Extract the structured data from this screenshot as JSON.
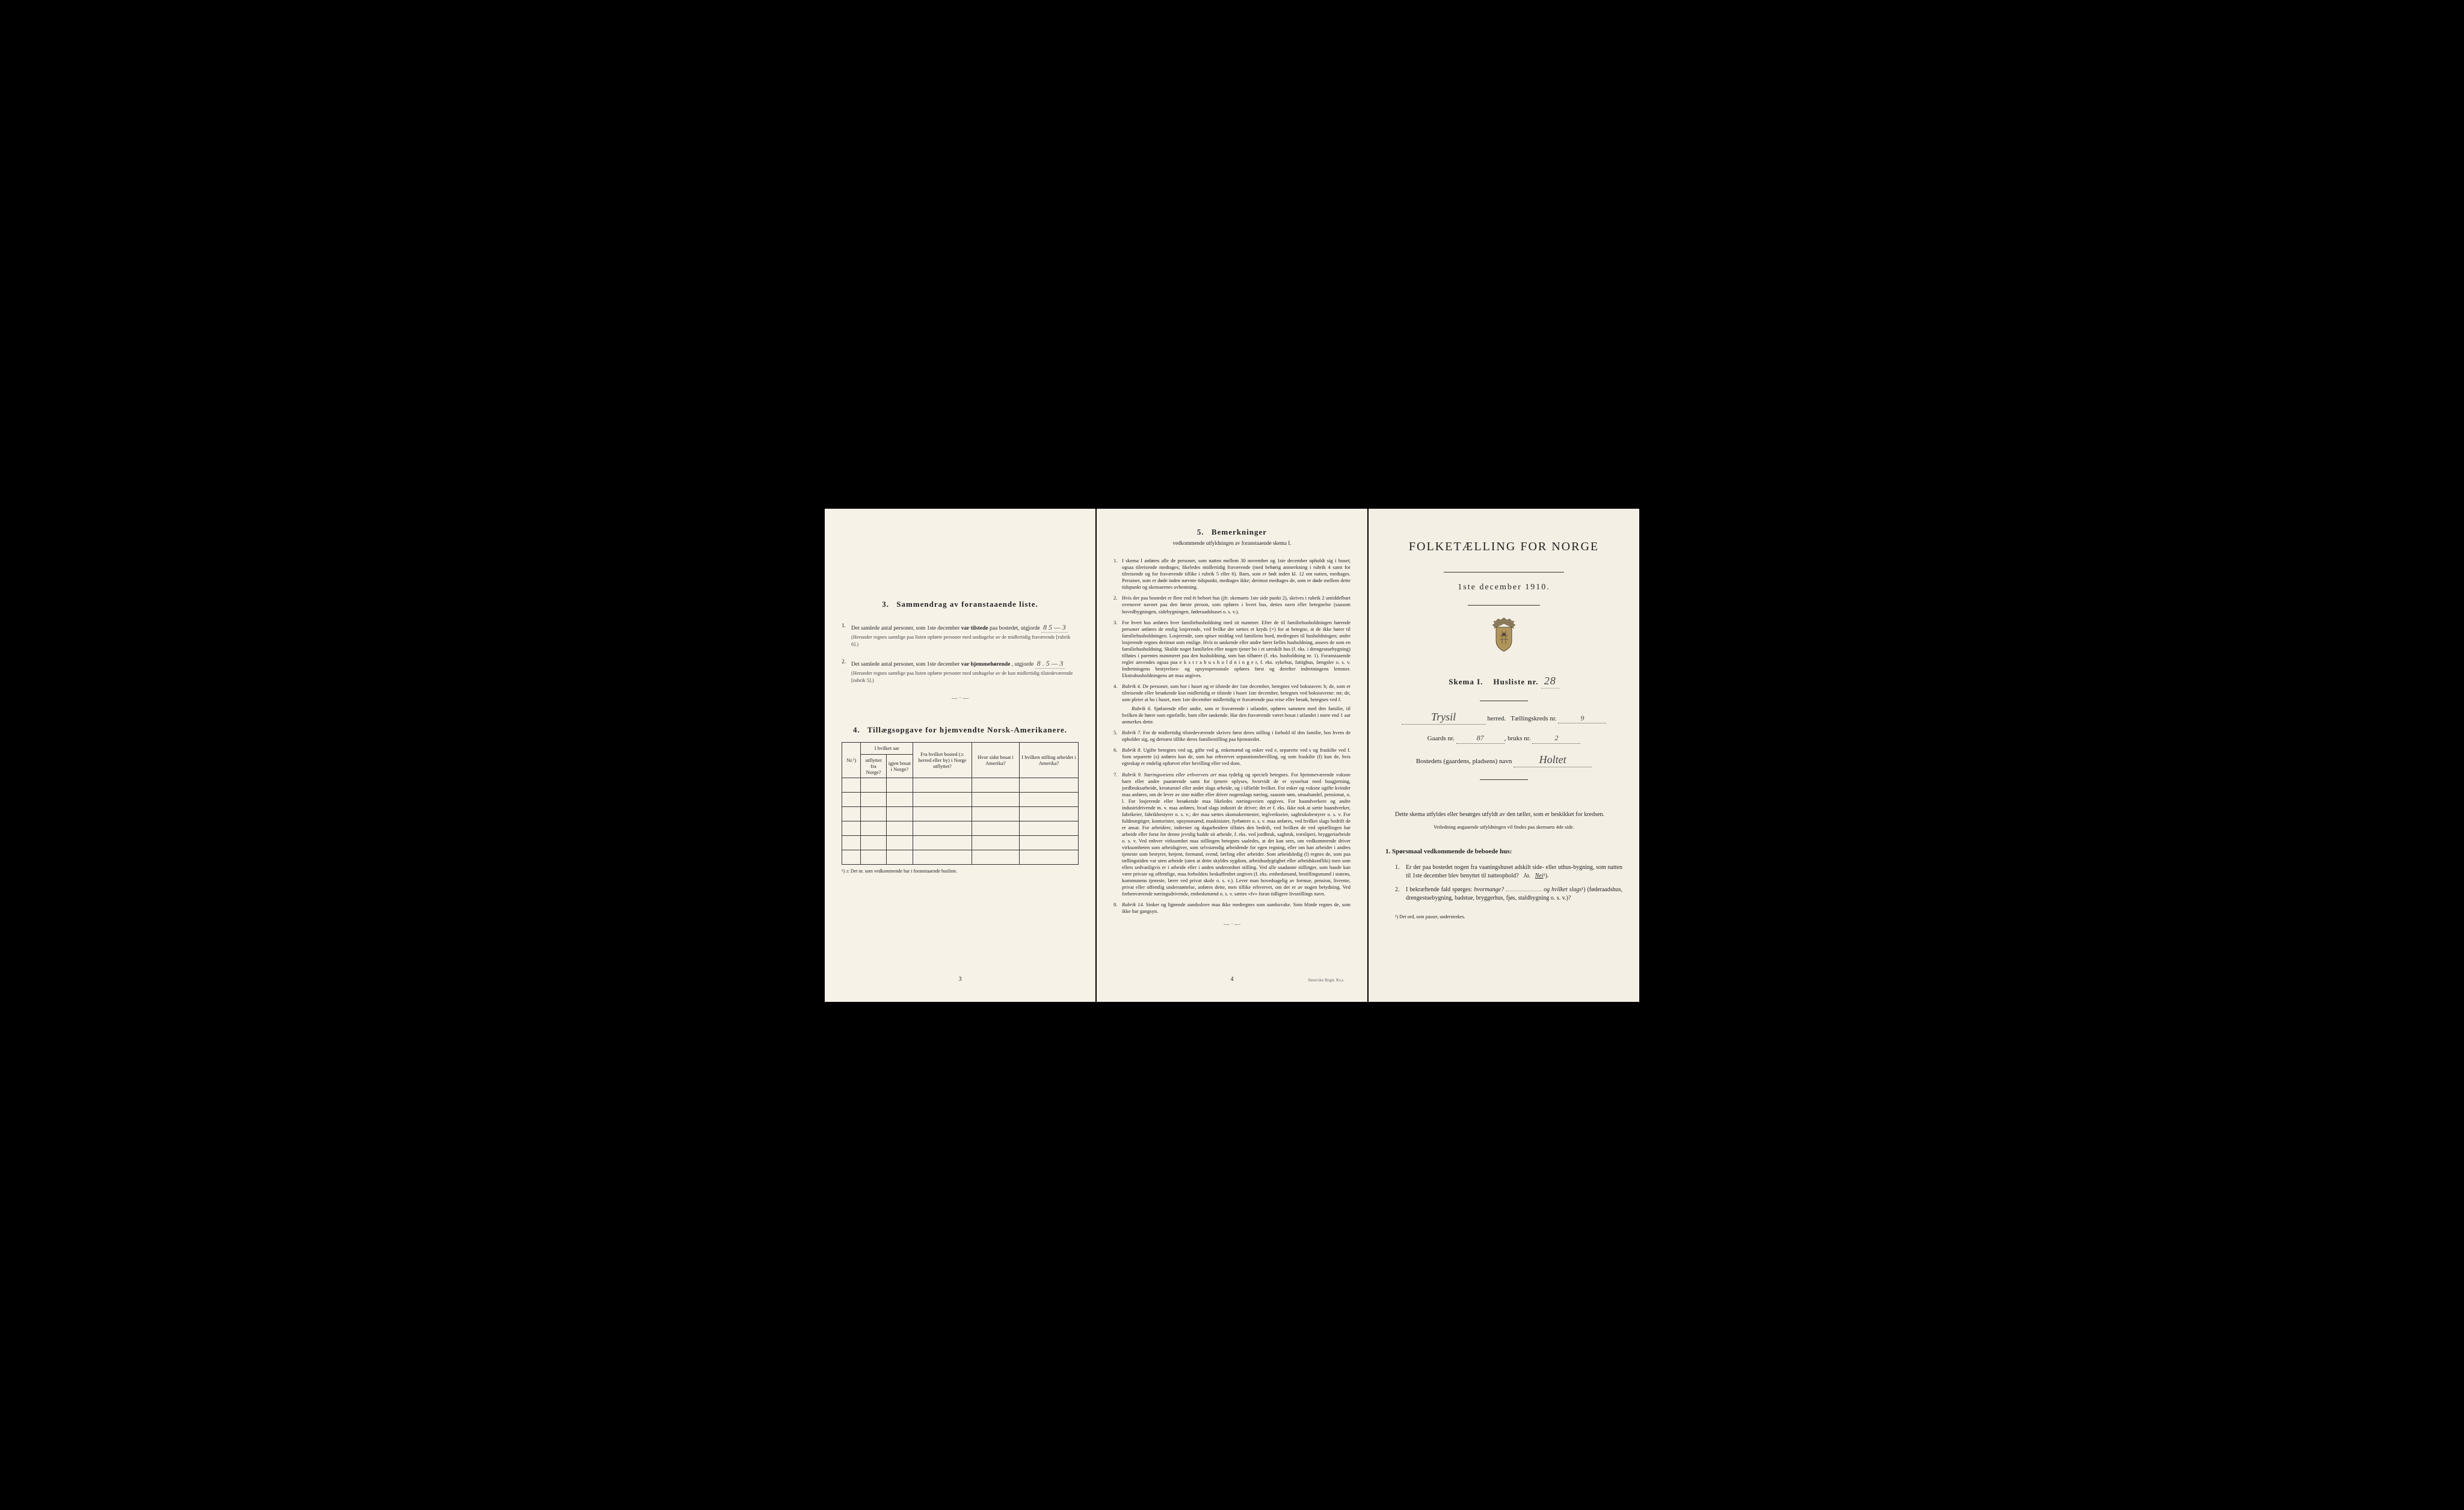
{
  "page1": {
    "section3": {
      "header_num": "3.",
      "header_title": "Sammendrag av foranstaaende liste.",
      "item1": {
        "num": "1.",
        "text": "Det samlede antal personer, som 1ste december",
        "bold_part": "var tilstede",
        "text_after": "paa bostedet, utgjorde",
        "handwritten": "8    5 — 3",
        "note": "(Herunder regnes samtlige paa listen opførte personer med undtagelse av de midlertidig fraværende [rubrik 6].)"
      },
      "item2": {
        "num": "2.",
        "text": "Det samlede antal personer, som 1ste december",
        "bold_part": "var hjemmehørende",
        "text_after": ", utgjorde",
        "handwritten": "8 .   5 — 3",
        "note": "(Herunder regnes samtlige paa listen opførte personer med undtagelse av de kun midlertidig tilstedeværende [rubrik 5].)"
      }
    },
    "section4": {
      "header_num": "4.",
      "header_title": "Tillægsopgave for hjemvendte Norsk-Amerikanere.",
      "table_headers": {
        "col1": "Nr.¹)",
        "col2_main": "I hvilket aar",
        "col2a": "utflyttet fra Norge?",
        "col2b": "igjen bosat i Norge?",
        "col3": "Fra hvilket bosted (ɔ: herred eller by) i Norge utflyttet?",
        "col4": "Hvor sidst bosat i Amerika?",
        "col5": "I hvilken stilling arbeidet i Amerika?"
      },
      "footnote": "¹) ɔ: Det nr. som vedkommende har i foranstaaende husliste."
    },
    "page_num": "3"
  },
  "page2": {
    "header_num": "5.",
    "header_title": "Bemerkninger",
    "subtitle": "vedkommende utfyldningen av foranstaaende skema I.",
    "items": [
      {
        "num": "1.",
        "text": "I skema I anføres alle de personer, som natten mellem 30 november og 1ste december opholdt sig i huset; ogsaa tilreisende medtages; likeledes midlertidig fraværende (med behørig anmerkning i rubrik 4 samt for tilreisende og for fraværende tillike i rubrik 5 eller 6). Barn, som er født inden kl. 12 om natten, medtages. Personer, som er døde inden nævnte tidspunkt, medtages ikke; derimot medtages de, som er døde mellem dette tidspunkt og skemaernes avhentning."
      },
      {
        "num": "2.",
        "text": "Hvis der paa bostedet er flere end ét beboet hus (jfr. skemaets 1ste side punkt 2), skrives i rubrik 2 umiddelbart ovenover navnet paa den første person, som opføres i hvert hus, dettes navn eller betegnelse (saasom hovedbygningen, sidebygningen, føderaadshuset o. s. v.)."
      },
      {
        "num": "3.",
        "text": "For hvert hus anføres hver familiehusholdning med sit nummer. Efter de til familiehusholdningen hørende personer anføres de enslig losjerende, ved hvilke der sættes et kryds (×) for at betegne, at de ikke hører til familiehusholdningen. Losjerende, som spiser middag ved familiens bord, medregnes til husholdningen; andre losjerende regnes derimot som enslige. Hvis to søskende eller andre fører fælles husholdning, ansees de som en familiehusholdning. Skulde noget familielen eller nogen tjener bo i et særskilt hus (f. eks. i drengestuebygning) tilføies i parentes nummeret paa den husholdning, som han tilhører (f. eks. husholdning nr. 1). Foranstaaende regler anvendes ogsaa paa e k s t r a h u s h o l d n i n g e r, f. eks. sykehus, fattighus, fængsler o. s. v. Indretningens bestyrelses- og opsynspersonale opføres først og derefter indretningens lemmer. Ekstrahusholdningens art maa angives."
      },
      {
        "num": "4.",
        "lead": "Rubrik 4.",
        "text": "De personer, som bor i huset og er tilstede der 1ste december, betegnes ved bokstaven: b; de, som er tilreisende eller besøkende kun midlertidig er tilstede i huset 1ste december, betegnes ved bokstaverne: mt; de, som pleier at bo i huset, men 1ste december midlertidig er fraværende paa reise eller besøk, betegnes ved f.",
        "sub_lead": "Rubrik 6.",
        "sub_text": "Sjøfarende eller andre, som er fraværende i utlandet, opføres sammen med den familie, til hvilken de hører som egtefælle, barn eller søskende. Har den fraværende været bosat i utlandet i mere end 1 aar anmerkes dette."
      },
      {
        "num": "5.",
        "lead": "Rubrik 7.",
        "text": "For de midlertidig tilstedeværende skrives først deres stilling i forhold til den familie, hos hvem de opholder sig, og dernæst tillike deres familiestilling paa hjemstedet."
      },
      {
        "num": "6.",
        "lead": "Rubrik 8.",
        "text": "Ugifte betegnes ved ug, gifte ved g, enkemænd og enker ved e, separerte ved s og fraskilte ved f. Som separerte (s) anføres kun de, som har erhvervet separationsbevilling, og som fraskilte (f) kun de, hvis egteskap er endelig ophævet efter bevilling eller ved dom."
      },
      {
        "num": "7.",
        "lead": "Rubrik 9.",
        "lead_italic": "Næringsveiens eller erhvervets art",
        "text": "maa tydelig og specielt betegnes. For hjemmeværende voksne barn eller andre paarørende samt for tjenere oplyses, hvorvidt de er sysselsat med husgjerning, jordbruksarbeide, kreaturstel eller andet slags arbeide, og i tilfælde hvilket. For enker og voksne ugifte kvinder maa anføres, om de lever av sine midler eller driver nogenslags næring, saasom søm, smaahandel, pensionat, o. l. For losjerende eller besøkende maa likeledes næringsveien opgives. For haandverkere og andre industridrivende m. v. maa anføres, hvad slags industri de driver; det er f. eks. ikke nok at sætte haandverker, fabrikeier, fabrikbestyrer o. s. v.; der maa sættes skomakermester, teglverkseier, sagbruksbestyrer o. s. v. For fuldmægtiger, kontorister, opsynsmænd, maskinister, fyrbøtere o. s. v. maa anføres, ved hvilket slags bedrift de er ansat. For arbeidere, inderster og dagarbeidere tilføies den bedrift, ved hvilken de ved optællingen har arbeide eller forut for denne jevnlig hadde sit arbeide, f. eks. ved jordbruk, sagbruk, træsliperi, bryggeriarbeide o. s. v. Ved enhver virksomhet maa stillingen betegnes saaledes, at det kan sees, om vedkommende driver virksomheten som arbeidsgiver, som selvstændig arbeidende for egen regning, eller om han arbeider i andres tjeneste som bestyrer, betjent, formand, svend, lærling eller arbeider. Som arbeidsledig (l) regnes de, som paa tællingstiden var uten arbeide (uten at dette skyldes sygdom, arbeidsudygtighet eller arbeidskonflikt) men som ellers sedvanligvis er i arbeide eller i anden underordnet stilling. Ved alle saadanne stillinger, som baade kan være private og offentlige, maa forholdets beskaffenhet angives (f. eks. embedsmand, bestillingsmand i statens, kommunens tjeneste, lærer ved privat skole o. s. v.). Lever man hovedsagelig av formue, pension, livrente, privat eller offentlig understøttelse, anføres dette, men tillike erhvervet, om det er av nogen betydning. Ved forhenværende næringsdrivende, embedsmænd o. s. v. sættes «fv» foran tidligere livsstillings navn."
      },
      {
        "num": "8.",
        "lead": "Rubrik 14.",
        "text": "Sinker og lignende aandsslove maa ikke medregnes som aandssvake. Som blinde regnes de, som ikke har gangsyn."
      }
    ],
    "page_num": "4",
    "printer": "Steen'ske Bogtr.  Kr.a"
  },
  "page3": {
    "main_title": "FOLKETÆLLING FOR NORGE",
    "date": "1ste december 1910.",
    "skema": "Skema I.",
    "husliste_label": "Husliste nr.",
    "husliste_nr": "28",
    "herred_hw": "Trysil",
    "herred_label": "herred.",
    "taelling_label": "Tællingskreds nr.",
    "taelling_nr": "9",
    "gaards_label": "Gaards nr.",
    "gaards_nr": "87",
    "bruks_label": "bruks nr.",
    "bruks_nr": "2",
    "bosted_label": "Bostedets (gaardens, pladsens) navn",
    "bosted_hw": "Holtet",
    "instruction": "Dette skema utfyldes eller besørges utfyldt av den tæller, som er beskikket for kredsen.",
    "instruction_small": "Veiledning angaaende utfyldningen vil findes paa skemaets 4de side.",
    "questions_header": "1. Spørsmaal vedkommende de beboede hus:",
    "q1": {
      "num": "1.",
      "text": "Er der paa bostedet nogen fra vaaningshuset adskilt side- eller uthus-bygning, som natten til 1ste december blev benyttet til natteophold?",
      "answer_ja": "Ja.",
      "answer_nei": "Nei",
      "answer_sup": "¹)."
    },
    "q2": {
      "num": "2.",
      "text_pre": "I bekræftende fald spørges:",
      "text_italic1": "hvormange?",
      "text_mid": "og",
      "text_italic2": "hvilket slags",
      "text_sup": "¹)",
      "text_end": "(føderaadshus, drengestuebygning, badstue, bryggerhus, fjøs, staldbygning o. s. v.)?"
    },
    "footnote": "¹) Det ord, som passer, understrekes."
  },
  "colors": {
    "paper": "#f4f0e6",
    "text": "#222222",
    "border": "#333333",
    "faded": "#666666"
  }
}
